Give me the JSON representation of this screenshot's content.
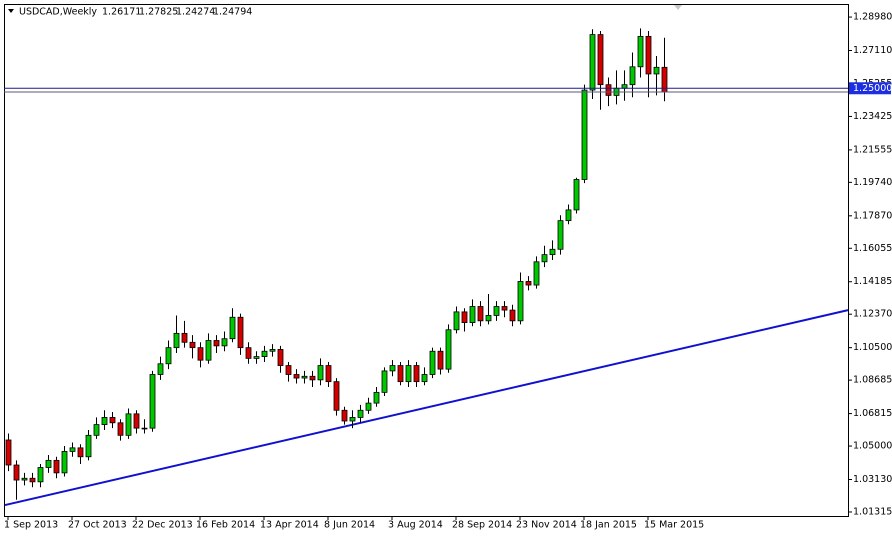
{
  "chart_data": {
    "type": "candlestick",
    "symbol": "USDCAD,Weekly",
    "categories": [
      "1 Sep 2013",
      null,
      null,
      null,
      null,
      null,
      null,
      null,
      "27 Oct 2013",
      null,
      null,
      null,
      null,
      null,
      null,
      null,
      "22 Dec 2013",
      null,
      null,
      null,
      null,
      null,
      null,
      null,
      "16 Feb 2014",
      null,
      null,
      null,
      null,
      null,
      null,
      null,
      "13 Apr 2014",
      null,
      null,
      null,
      null,
      null,
      null,
      null,
      "8 Jun 2014",
      null,
      null,
      null,
      null,
      null,
      null,
      null,
      "3 Aug 2014",
      null,
      null,
      null,
      null,
      null,
      null,
      null,
      "28 Sep 2014",
      null,
      null,
      null,
      null,
      null,
      null,
      null,
      "23 Nov 2014",
      null,
      null,
      null,
      null,
      null,
      null,
      null,
      "18 Jan 2015",
      null,
      null,
      null,
      null,
      null,
      null,
      null,
      "15 Mar 2015",
      null,
      null
    ],
    "open": [
      1.0534,
      1.0394,
      1.031,
      1.032,
      1.03,
      1.038,
      1.042,
      1.035,
      1.047,
      1.049,
      1.044,
      1.056,
      1.062,
      1.066,
      1.063,
      1.056,
      1.068,
      1.06,
      1.06,
      1.09,
      1.096,
      1.105,
      1.113,
      1.108,
      1.105,
      1.098,
      1.109,
      1.106,
      1.11,
      1.122,
      1.105,
      1.099,
      1.1,
      1.103,
      1.104,
      1.095,
      1.09,
      1.088,
      1.089,
      1.087,
      1.095,
      1.086,
      1.07,
      1.064,
      1.066,
      1.07,
      1.074,
      1.08,
      1.092,
      1.095,
      1.086,
      1.095,
      1.086,
      1.09,
      1.103,
      1.093,
      1.115,
      1.125,
      1.119,
      1.128,
      1.12,
      1.123,
      1.128,
      1.126,
      1.12,
      1.142,
      1.14,
      1.153,
      1.157,
      1.16,
      1.176,
      1.182,
      1.199,
      1.249,
      1.28,
      1.252,
      1.246,
      1.25,
      1.252,
      1.262,
      1.279,
      1.258,
      1.26171
    ],
    "high": [
      1.057,
      1.042,
      1.035,
      1.035,
      1.04,
      1.045,
      1.044,
      1.05,
      1.052,
      1.051,
      1.059,
      1.066,
      1.07,
      1.069,
      1.065,
      1.071,
      1.07,
      1.065,
      1.092,
      1.1,
      1.109,
      1.123,
      1.12,
      1.112,
      1.108,
      1.113,
      1.112,
      1.114,
      1.127,
      1.124,
      1.108,
      1.103,
      1.106,
      1.107,
      1.106,
      1.097,
      1.093,
      1.092,
      1.092,
      1.099,
      1.097,
      1.088,
      1.072,
      1.07,
      1.073,
      1.077,
      1.083,
      1.094,
      1.098,
      1.097,
      1.098,
      1.097,
      1.094,
      1.105,
      1.105,
      1.118,
      1.128,
      1.127,
      1.132,
      1.131,
      1.135,
      1.131,
      1.131,
      1.129,
      1.147,
      1.145,
      1.156,
      1.162,
      1.165,
      1.179,
      1.185,
      1.2,
      1.252,
      1.283,
      1.282,
      1.256,
      1.26,
      1.26,
      1.27,
      1.2835,
      1.282,
      1.268,
      1.27825
    ],
    "low": [
      1.036,
      1.02,
      1.028,
      1.027,
      1.027,
      1.035,
      1.032,
      1.033,
      1.044,
      1.04,
      1.042,
      1.054,
      1.059,
      1.06,
      1.053,
      1.054,
      1.057,
      1.057,
      1.058,
      1.087,
      1.093,
      1.102,
      1.105,
      1.099,
      1.094,
      1.096,
      1.102,
      1.103,
      1.108,
      1.101,
      1.096,
      1.096,
      1.097,
      1.1,
      1.091,
      1.086,
      1.085,
      1.085,
      1.083,
      1.084,
      1.083,
      1.067,
      1.062,
      1.06,
      1.063,
      1.068,
      1.072,
      1.078,
      1.089,
      1.084,
      1.083,
      1.083,
      1.084,
      1.088,
      1.09,
      1.091,
      1.113,
      1.114,
      1.117,
      1.117,
      1.118,
      1.12,
      1.122,
      1.117,
      1.118,
      1.137,
      1.138,
      1.15,
      1.154,
      1.157,
      1.174,
      1.18,
      1.197,
      1.244,
      1.238,
      1.24,
      1.241,
      1.243,
      1.245,
      1.256,
      1.245,
      1.246,
      1.24274
    ],
    "close": [
      1.0394,
      1.031,
      1.032,
      1.03,
      1.038,
      1.042,
      1.035,
      1.047,
      1.049,
      1.044,
      1.056,
      1.062,
      1.066,
      1.063,
      1.056,
      1.068,
      1.06,
      1.06,
      1.09,
      1.096,
      1.105,
      1.113,
      1.108,
      1.105,
      1.098,
      1.109,
      1.106,
      1.11,
      1.122,
      1.105,
      1.099,
      1.1,
      1.103,
      1.104,
      1.095,
      1.09,
      1.088,
      1.089,
      1.087,
      1.095,
      1.086,
      1.07,
      1.064,
      1.066,
      1.07,
      1.074,
      1.08,
      1.092,
      1.095,
      1.086,
      1.095,
      1.086,
      1.09,
      1.103,
      1.093,
      1.115,
      1.125,
      1.119,
      1.128,
      1.12,
      1.123,
      1.128,
      1.126,
      1.12,
      1.142,
      1.14,
      1.153,
      1.157,
      1.16,
      1.176,
      1.182,
      1.199,
      1.249,
      1.28,
      1.252,
      1.246,
      1.25,
      1.252,
      1.262,
      1.279,
      1.258,
      1.26171,
      1.24794
    ],
    "up_color": "#00c800",
    "down_color": "#d40000",
    "ylim": [
      1.0109,
      1.2971
    ],
    "yticks": [
      {
        "value": 1.2898,
        "label": "1.28980"
      },
      {
        "value": 1.2711,
        "label": "1.27110"
      },
      1.25255,
      1.23425,
      1.21555,
      {
        "value": 1.1974,
        "label": "1.19740"
      },
      {
        "value": 1.1787,
        "label": "1.17870"
      },
      1.16055,
      1.14185,
      {
        "value": 1.1237,
        "label": "1.12370"
      },
      {
        "value": 1.105,
        "label": "1.10500"
      },
      1.08685,
      1.06815,
      {
        "value": 1.05,
        "label": "1.05000"
      },
      {
        "value": 1.0313,
        "label": "1.03130"
      },
      1.01315
    ],
    "hline": {
      "value": 1.25,
      "label": "1.25000",
      "color": "#1a1a8c"
    },
    "trendline": {
      "values": [
        1.017,
        1.126
      ],
      "color": "#1010d0"
    }
  }
}
